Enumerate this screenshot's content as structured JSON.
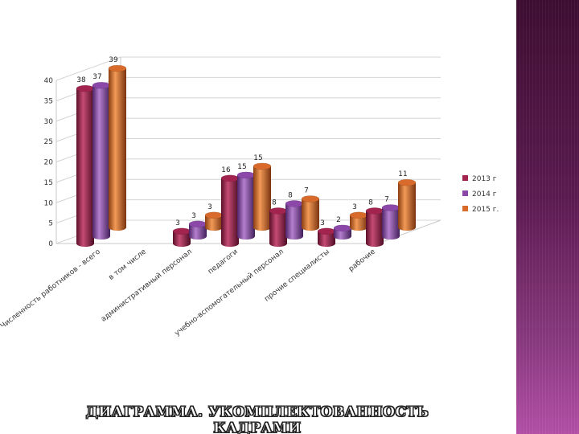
{
  "slide": {
    "title": "ДИАГРАММА. УКОМПЛЕКТОВАННОСТЬ КАДРАМИ"
  },
  "colors": {
    "series_2013": "#a3234f",
    "series_2014": "#8b48a8",
    "series_2015": "#d86a2b",
    "band_top": "#3d0d31",
    "band_bottom": "#b24ea6"
  },
  "chart_data": {
    "type": "bar",
    "title": "",
    "xlabel": "",
    "ylabel": "",
    "ylim": [
      0,
      40
    ],
    "yticks": [
      0,
      5,
      10,
      15,
      20,
      25,
      30,
      35,
      40
    ],
    "grid": true,
    "legend_position": "right",
    "categories": [
      "Численность работников - всего",
      "в том числе",
      "административный персонал",
      "педагоги",
      "учебно-вспомогательный персонал",
      "прочие специалисты",
      "рабочие"
    ],
    "series": [
      {
        "name": "2013 г",
        "values": [
          38,
          null,
          3,
          16,
          8,
          3,
          8
        ]
      },
      {
        "name": "2014 г",
        "values": [
          37,
          null,
          3,
          15,
          8,
          2,
          7
        ]
      },
      {
        "name": "2015 г.",
        "values": [
          39,
          null,
          3,
          15,
          7,
          3,
          11
        ]
      }
    ]
  }
}
